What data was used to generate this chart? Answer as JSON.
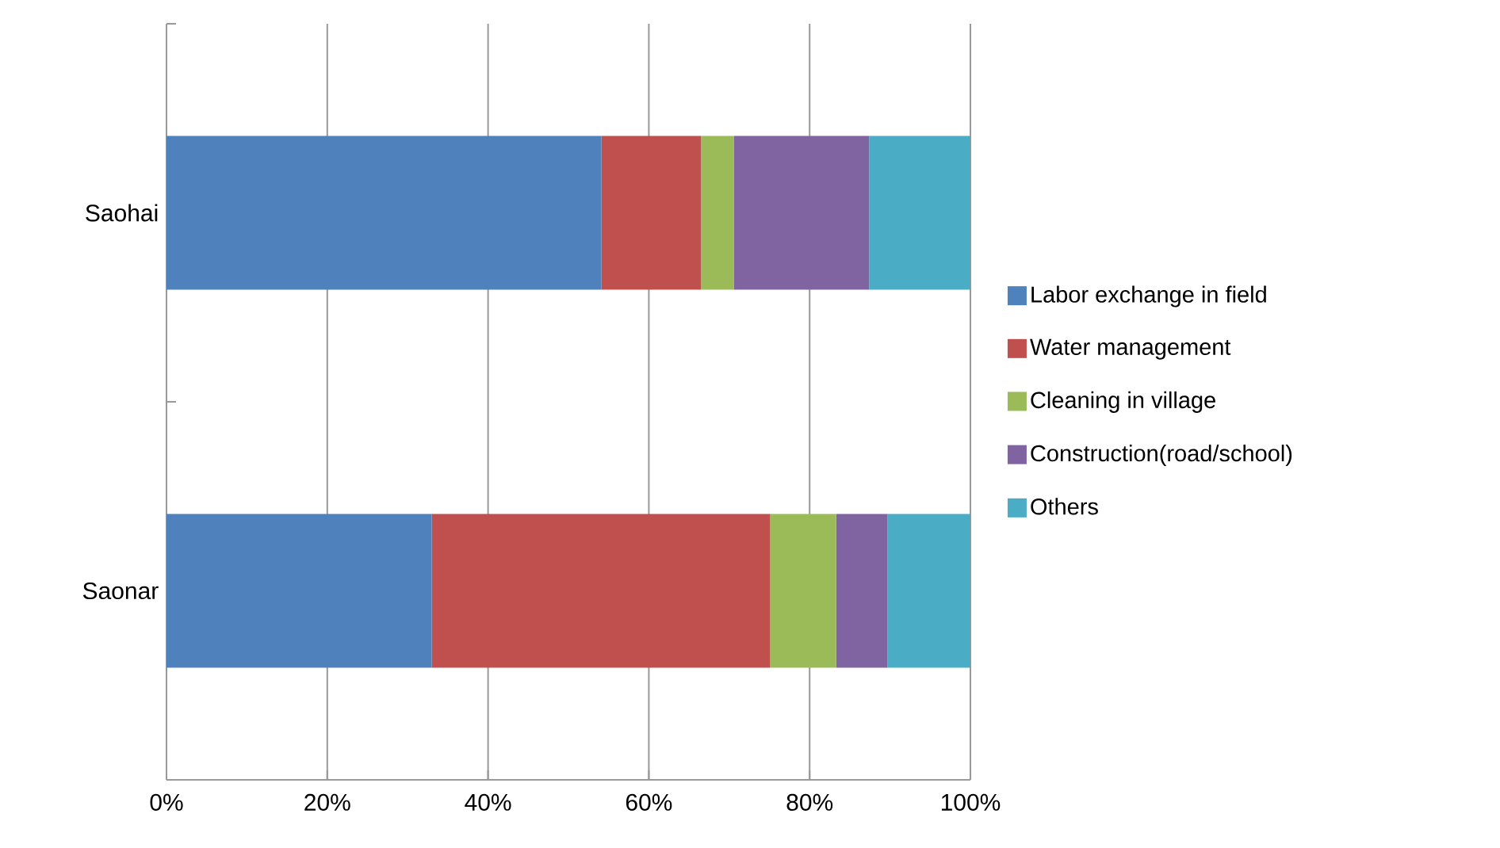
{
  "chart_data": {
    "type": "bar",
    "orientation": "horizontal",
    "stacked": true,
    "categories": [
      "Saohai",
      "Saonar"
    ],
    "series": [
      {
        "name": "Labor exchange in field",
        "color": "#4f81bd",
        "values": [
          54.1,
          33.0
        ]
      },
      {
        "name": "Water management",
        "color": "#c0504d",
        "values": [
          12.4,
          42.1
        ]
      },
      {
        "name": "Cleaning in village",
        "color": "#9bbb59",
        "values": [
          4.1,
          8.2
        ]
      },
      {
        "name": "Construction(road/school)",
        "color": "#8064a2",
        "values": [
          16.8,
          6.4
        ]
      },
      {
        "name": "Others",
        "color": "#4bacc6",
        "values": [
          12.6,
          10.3
        ]
      }
    ],
    "xlim": [
      0,
      100
    ],
    "xticks": [
      {
        "value": 0,
        "label": "0%"
      },
      {
        "value": 20,
        "label": "20%"
      },
      {
        "value": 40,
        "label": "40%"
      },
      {
        "value": 60,
        "label": "60%"
      },
      {
        "value": 80,
        "label": "80%"
      },
      {
        "value": 100,
        "label": "100%"
      }
    ],
    "grid": "x",
    "legend": "right"
  }
}
